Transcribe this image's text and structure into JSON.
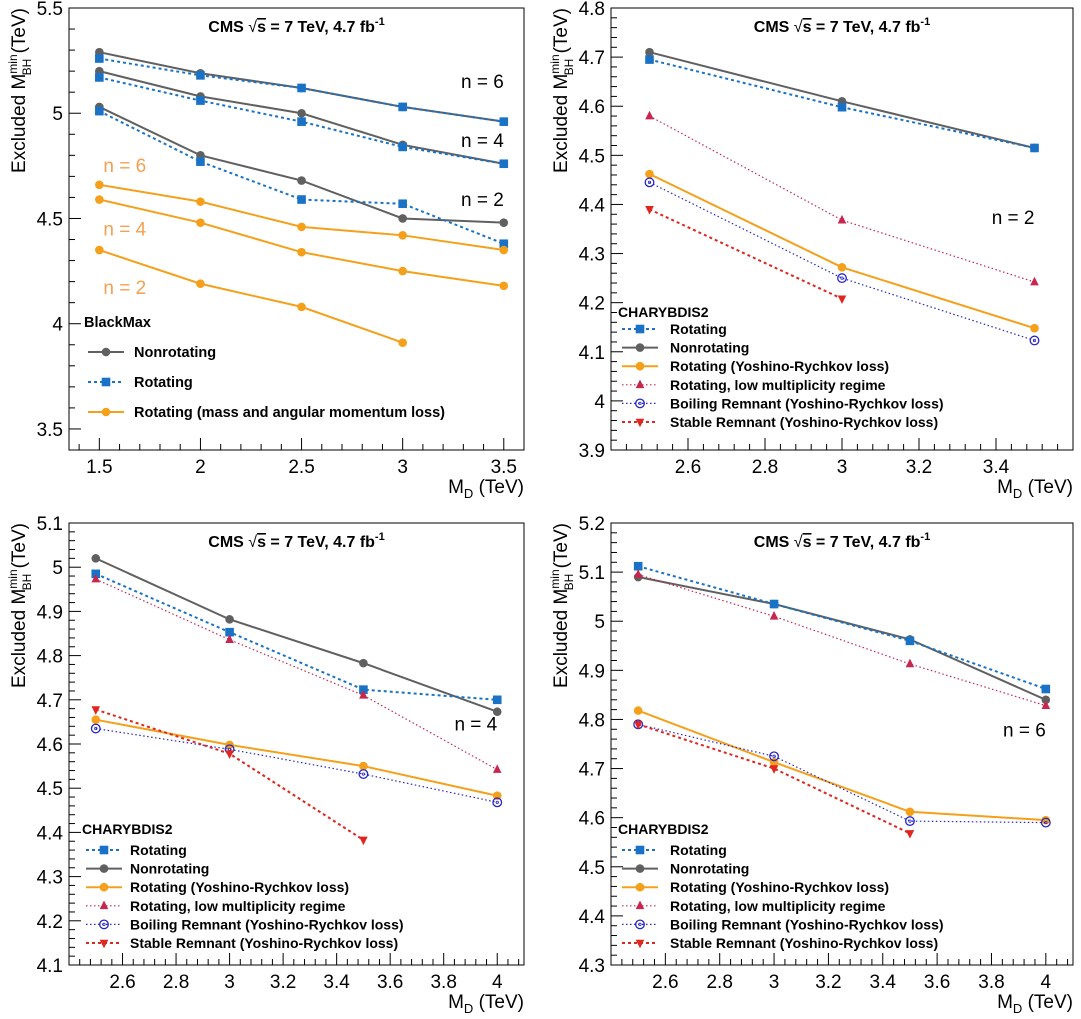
{
  "chart_data": [
    {
      "type": "line",
      "title": "CMS √s = 7 TeV, 4.7 fb⁻¹",
      "title_parts": {
        "lead": "CMS ",
        "root": "√",
        "s": "s",
        "rest": " = 7 TeV, 4.7 fb",
        "sup": "-1"
      },
      "xlabel": {
        "main": "M",
        "sub": "D",
        "unit": " (TeV)"
      },
      "ylabel": {
        "main": "Excluded M",
        "sub": "BH",
        "sup": "min",
        "unit": " (TeV)"
      },
      "xlim": [
        1.35,
        3.6
      ],
      "ylim": [
        3.4,
        5.5
      ],
      "xticks": [
        "1.5",
        "2",
        "2.5",
        "3",
        "3.5"
      ],
      "xtick_values": [
        1.5,
        2,
        2.5,
        3,
        3.5
      ],
      "yticks": [
        "3.5",
        "4",
        "4.5",
        "5",
        "5.5"
      ],
      "ytick_values": [
        3.5,
        4,
        4.5,
        5,
        5.5
      ],
      "legend_title": "BlackMax",
      "legend_position": "bottom-left",
      "annotations": [
        {
          "text": "n = 6",
          "x": 3.5,
          "y": 5.12,
          "color": "#000000",
          "anchor": "end"
        },
        {
          "text": "n = 4",
          "x": 3.5,
          "y": 4.84,
          "color": "#000000",
          "anchor": "end"
        },
        {
          "text": "n = 2",
          "x": 3.5,
          "y": 4.56,
          "color": "#000000",
          "anchor": "end"
        },
        {
          "text": "n = 6",
          "x": 1.52,
          "y": 4.72,
          "color": "#f5a050",
          "anchor": "start"
        },
        {
          "text": "n = 4",
          "x": 1.52,
          "y": 4.42,
          "color": "#f5a050",
          "anchor": "start"
        },
        {
          "text": "n = 2",
          "x": 1.52,
          "y": 4.14,
          "color": "#f5a050",
          "anchor": "start"
        }
      ],
      "legend": [
        {
          "name": "Nonrotating",
          "style": "nonrot"
        },
        {
          "name": "Rotating",
          "style": "rot"
        },
        {
          "name": "Rotating (mass and angular momentum loss)",
          "style": "yr"
        }
      ],
      "series": [
        {
          "name": "Nonrotating",
          "group": "n = 6",
          "style": "nonrot",
          "x": [
            1.5,
            2,
            2.5,
            3,
            3.5
          ],
          "y": [
            5.29,
            5.19,
            5.12,
            5.03,
            4.96
          ]
        },
        {
          "name": "Nonrotating",
          "group": "n = 4",
          "style": "nonrot",
          "x": [
            1.5,
            2,
            2.5,
            3,
            3.5
          ],
          "y": [
            5.2,
            5.08,
            5.0,
            4.85,
            4.76
          ]
        },
        {
          "name": "Nonrotating",
          "group": "n = 2",
          "style": "nonrot",
          "x": [
            1.5,
            2,
            2.5,
            3,
            3.5
          ],
          "y": [
            5.03,
            4.8,
            4.68,
            4.5,
            4.48
          ]
        },
        {
          "name": "Rotating",
          "group": "n = 6",
          "style": "rot",
          "x": [
            1.5,
            2,
            2.5,
            3,
            3.5
          ],
          "y": [
            5.26,
            5.18,
            5.12,
            5.03,
            4.96
          ]
        },
        {
          "name": "Rotating",
          "group": "n = 4",
          "style": "rot",
          "x": [
            1.5,
            2,
            2.5,
            3,
            3.5
          ],
          "y": [
            5.17,
            5.06,
            4.96,
            4.84,
            4.76
          ]
        },
        {
          "name": "Rotating",
          "group": "n = 2",
          "style": "rot",
          "x": [
            1.5,
            2,
            2.5,
            3,
            3.5
          ],
          "y": [
            5.01,
            4.77,
            4.59,
            4.57,
            4.38
          ]
        },
        {
          "name": "Rotating (mass and angular momentum loss)",
          "group": "n = 6",
          "style": "yr",
          "x": [
            1.5,
            2,
            2.5,
            3,
            3.5
          ],
          "y": [
            4.66,
            4.58,
            4.46,
            4.42,
            4.35
          ]
        },
        {
          "name": "Rotating (mass and angular momentum loss)",
          "group": "n = 4",
          "style": "yr",
          "x": [
            1.5,
            2,
            2.5,
            3,
            3.5
          ],
          "y": [
            4.59,
            4.48,
            4.34,
            4.25,
            4.18
          ]
        },
        {
          "name": "Rotating (mass and angular momentum loss)",
          "group": "n = 2",
          "style": "yr",
          "x": [
            1.5,
            2,
            2.5,
            3
          ],
          "y": [
            4.35,
            4.19,
            4.08,
            3.91
          ]
        }
      ]
    },
    {
      "type": "line",
      "title": "CMS √s = 7 TeV, 4.7 fb⁻¹",
      "title_parts": {
        "lead": "CMS ",
        "root": "√",
        "s": "s",
        "rest": " = 7 TeV, 4.7 fb",
        "sup": "-1"
      },
      "xlabel": {
        "main": "M",
        "sub": "D",
        "unit": " (TeV)"
      },
      "ylabel": {
        "main": "Excluded M",
        "sub": "BH",
        "sup": "min",
        "unit": " (TeV)"
      },
      "xlim": [
        2.4,
        3.6
      ],
      "ylim": [
        3.9,
        4.8
      ],
      "xticks": [
        "2.6",
        "2.8",
        "3",
        "3.2",
        "3.4"
      ],
      "xtick_values": [
        2.6,
        2.8,
        3,
        3.2,
        3.4
      ],
      "yticks": [
        "3.9",
        "4",
        "4.1",
        "4.2",
        "4.3",
        "4.4",
        "4.5",
        "4.6",
        "4.7",
        "4.8"
      ],
      "ytick_values": [
        3.9,
        4.0,
        4.1,
        4.2,
        4.3,
        4.4,
        4.5,
        4.6,
        4.7,
        4.8
      ],
      "legend_title": "CHARYBDIS2",
      "legend_position": "bottom-left",
      "annotations": [
        {
          "text": "n = 2",
          "x": 3.5,
          "y": 4.36,
          "color": "#000000",
          "anchor": "end"
        }
      ],
      "legend": [
        {
          "name": "Rotating",
          "style": "rot"
        },
        {
          "name": "Nonrotating",
          "style": "nonrot"
        },
        {
          "name": "Rotating (Yoshino-Rychkov loss)",
          "style": "yr"
        },
        {
          "name": "Rotating, low multiplicity regime",
          "style": "lowmult"
        },
        {
          "name": "Boiling Remnant (Yoshino-Rychkov loss)",
          "style": "boil"
        },
        {
          "name": "Stable Remnant (Yoshino-Rychkov loss)",
          "style": "stable"
        }
      ],
      "series": [
        {
          "name": "Nonrotating",
          "style": "nonrot",
          "x": [
            2.5,
            3,
            3.5
          ],
          "y": [
            4.71,
            4.61,
            4.515
          ]
        },
        {
          "name": "Rotating",
          "style": "rot",
          "x": [
            2.5,
            3,
            3.5
          ],
          "y": [
            4.695,
            4.598,
            4.515
          ]
        },
        {
          "name": "Rotating, low multiplicity regime",
          "style": "lowmult",
          "x": [
            2.5,
            3,
            3.5
          ],
          "y": [
            4.58,
            4.368,
            4.242
          ]
        },
        {
          "name": "Rotating (Yoshino-Rychkov loss)",
          "style": "yr",
          "x": [
            2.5,
            3,
            3.5
          ],
          "y": [
            4.462,
            4.272,
            4.148
          ]
        },
        {
          "name": "Boiling Remnant (Yoshino-Rychkov loss)",
          "style": "boil",
          "x": [
            2.5,
            3,
            3.5
          ],
          "y": [
            4.445,
            4.25,
            4.123
          ]
        },
        {
          "name": "Stable Remnant (Yoshino-Rychkov loss)",
          "style": "stable",
          "x": [
            2.5,
            3
          ],
          "y": [
            4.39,
            4.208
          ]
        }
      ]
    },
    {
      "type": "line",
      "title": "CMS √s = 7 TeV, 4.7 fb⁻¹",
      "title_parts": {
        "lead": "CMS ",
        "root": "√",
        "s": "s",
        "rest": " = 7 TeV, 4.7 fb",
        "sup": "-1"
      },
      "xlabel": {
        "main": "M",
        "sub": "D",
        "unit": " (TeV)"
      },
      "ylabel": {
        "main": "Excluded M",
        "sub": "BH",
        "sup": "min",
        "unit": " (TeV)"
      },
      "xlim": [
        2.4,
        4.1
      ],
      "ylim": [
        4.1,
        5.1
      ],
      "xticks": [
        "2.6",
        "2.8",
        "3",
        "3.2",
        "3.4",
        "3.6",
        "3.8",
        "4"
      ],
      "xtick_values": [
        2.6,
        2.8,
        3,
        3.2,
        3.4,
        3.6,
        3.8,
        4
      ],
      "yticks": [
        "4.1",
        "4.2",
        "4.3",
        "4.4",
        "4.5",
        "4.6",
        "4.7",
        "4.8",
        "4.9",
        "5",
        "5.1"
      ],
      "ytick_values": [
        4.1,
        4.2,
        4.3,
        4.4,
        4.5,
        4.6,
        4.7,
        4.8,
        4.9,
        5.0,
        5.1
      ],
      "legend_title": "CHARYBDIS2",
      "legend_position": "bottom-left",
      "annotations": [
        {
          "text": "n = 4",
          "x": 4.0,
          "y": 4.63,
          "color": "#000000",
          "anchor": "end"
        }
      ],
      "legend": [
        {
          "name": "Rotating",
          "style": "rot"
        },
        {
          "name": "Nonrotating",
          "style": "nonrot"
        },
        {
          "name": "Rotating (Yoshino-Rychkov loss)",
          "style": "yr"
        },
        {
          "name": "Rotating, low multiplicity regime",
          "style": "lowmult"
        },
        {
          "name": "Boiling Remnant (Yoshino-Rychkov loss)",
          "style": "boil"
        },
        {
          "name": "Stable Remnant (Yoshino-Rychkov loss)",
          "style": "stable"
        }
      ],
      "series": [
        {
          "name": "Nonrotating",
          "style": "nonrot",
          "x": [
            2.5,
            3,
            3.5,
            4
          ],
          "y": [
            5.02,
            4.882,
            4.783,
            4.673
          ]
        },
        {
          "name": "Rotating",
          "style": "rot",
          "x": [
            2.5,
            3,
            3.5,
            4
          ],
          "y": [
            4.985,
            4.853,
            4.723,
            4.7
          ]
        },
        {
          "name": "Rotating, low multiplicity regime",
          "style": "lowmult",
          "x": [
            2.5,
            3,
            3.5,
            4
          ],
          "y": [
            4.973,
            4.836,
            4.71,
            4.542
          ]
        },
        {
          "name": "Rotating (Yoshino-Rychkov loss)",
          "style": "yr",
          "x": [
            2.5,
            3,
            3.5,
            4
          ],
          "y": [
            4.655,
            4.598,
            4.55,
            4.483
          ]
        },
        {
          "name": "Boiling Remnant (Yoshino-Rychkov loss)",
          "style": "boil",
          "x": [
            2.5,
            3,
            3.5,
            4
          ],
          "y": [
            4.635,
            4.588,
            4.532,
            4.468
          ]
        },
        {
          "name": "Stable Remnant (Yoshino-Rychkov loss)",
          "style": "stable",
          "x": [
            2.5,
            3,
            3.5
          ],
          "y": [
            4.678,
            4.578,
            4.383
          ]
        }
      ]
    },
    {
      "type": "line",
      "title": "CMS √s = 7 TeV, 4.7 fb⁻¹",
      "title_parts": {
        "lead": "CMS ",
        "root": "√",
        "s": "s",
        "rest": " = 7 TeV, 4.7 fb",
        "sup": "-1"
      },
      "xlabel": {
        "main": "M",
        "sub": "D",
        "unit": " (TeV)"
      },
      "ylabel": {
        "main": "Excluded M",
        "sub": "BH",
        "sup": "min",
        "unit": " (TeV)"
      },
      "xlim": [
        2.4,
        4.1
      ],
      "ylim": [
        4.3,
        5.2
      ],
      "xticks": [
        "2.6",
        "2.8",
        "3",
        "3.2",
        "3.4",
        "3.6",
        "3.8",
        "4"
      ],
      "xtick_values": [
        2.6,
        2.8,
        3,
        3.2,
        3.4,
        3.6,
        3.8,
        4
      ],
      "yticks": [
        "4.3",
        "4.4",
        "4.5",
        "4.6",
        "4.7",
        "4.8",
        "4.9",
        "5",
        "5.1",
        "5.2"
      ],
      "ytick_values": [
        4.3,
        4.4,
        4.5,
        4.6,
        4.7,
        4.8,
        4.9,
        5.0,
        5.1,
        5.2
      ],
      "legend_title": "CHARYBDIS2",
      "legend_position": "bottom-left",
      "annotations": [
        {
          "text": "n = 6",
          "x": 4.0,
          "y": 4.765,
          "color": "#000000",
          "anchor": "end"
        }
      ],
      "legend": [
        {
          "name": "Rotating",
          "style": "rot"
        },
        {
          "name": "Nonrotating",
          "style": "nonrot"
        },
        {
          "name": "Rotating (Yoshino-Rychkov loss)",
          "style": "yr"
        },
        {
          "name": "Rotating, low multiplicity regime",
          "style": "lowmult"
        },
        {
          "name": "Boiling Remnant (Yoshino-Rychkov loss)",
          "style": "boil"
        },
        {
          "name": "Stable Remnant (Yoshino-Rychkov loss)",
          "style": "stable"
        }
      ],
      "series": [
        {
          "name": "Nonrotating",
          "style": "nonrot",
          "x": [
            2.5,
            3,
            3.5,
            4
          ],
          "y": [
            5.09,
            5.035,
            4.963,
            4.84
          ]
        },
        {
          "name": "Rotating",
          "style": "rot",
          "x": [
            2.5,
            3,
            3.5,
            4
          ],
          "y": [
            5.112,
            5.035,
            4.96,
            4.862
          ]
        },
        {
          "name": "Rotating, low multiplicity regime",
          "style": "lowmult",
          "x": [
            2.5,
            3,
            3.5,
            4
          ],
          "y": [
            5.095,
            5.01,
            4.913,
            4.828
          ]
        },
        {
          "name": "Rotating (Yoshino-Rychkov loss)",
          "style": "yr",
          "x": [
            2.5,
            3,
            3.5,
            4
          ],
          "y": [
            4.818,
            4.713,
            4.612,
            4.595
          ]
        },
        {
          "name": "Boiling Remnant (Yoshino-Rychkov loss)",
          "style": "boil",
          "x": [
            2.5,
            3,
            3.5,
            4
          ],
          "y": [
            4.79,
            4.725,
            4.593,
            4.59
          ]
        },
        {
          "name": "Stable Remnant (Yoshino-Rychkov loss)",
          "style": "stable",
          "x": [
            2.5,
            3,
            3.5
          ],
          "y": [
            4.79,
            4.7,
            4.568
          ]
        }
      ]
    }
  ],
  "styles": {
    "nonrot": {
      "color": "#606060",
      "dash": "",
      "marker": "circle",
      "width": 2
    },
    "rot": {
      "color": "#1a72c6",
      "dash": "3,3",
      "marker": "square",
      "width": 2
    },
    "yr": {
      "color": "#f5a01a",
      "dash": "",
      "marker": "circle",
      "width": 2
    },
    "lowmult": {
      "color": "#c8264f",
      "dash": "1.5,2.5",
      "marker": "triangle-up",
      "width": 1.2
    },
    "boil": {
      "color": "#2626c8",
      "dash": "1.5,2.5",
      "marker": "open-circle",
      "width": 1.2
    },
    "stable": {
      "color": "#e0261e",
      "dash": "3,3",
      "marker": "triangle-down",
      "width": 2
    }
  }
}
